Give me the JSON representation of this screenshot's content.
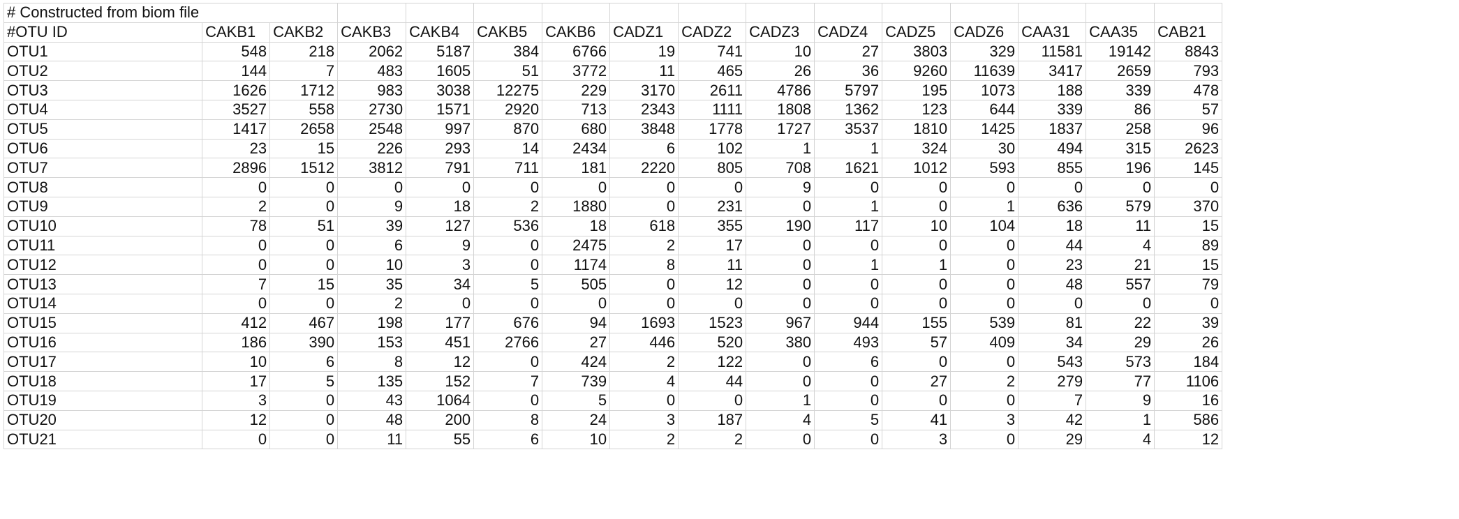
{
  "comment_row": "# Constructed from biom file",
  "columns": [
    "#OTU ID",
    "CAKB1",
    "CAKB2",
    "CAKB3",
    "CAKB4",
    "CAKB5",
    "CAKB6",
    "CADZ1",
    "CADZ2",
    "CADZ3",
    "CADZ4",
    "CADZ5",
    "CADZ6",
    "CAA31",
    "CAA35",
    "CAB21"
  ],
  "rows": [
    {
      "id": "OTU1",
      "values": [
        "548",
        "218",
        "2062",
        "5187",
        "384",
        "6766",
        "19",
        "741",
        "10",
        "27",
        "3803",
        "329",
        "11581",
        "19142",
        "8843"
      ]
    },
    {
      "id": "OTU2",
      "values": [
        "144",
        "7",
        "483",
        "1605",
        "51",
        "3772",
        "11",
        "465",
        "26",
        "36",
        "9260",
        "11639",
        "3417",
        "2659",
        "793"
      ]
    },
    {
      "id": "OTU3",
      "values": [
        "1626",
        "1712",
        "983",
        "3038",
        "12275",
        "229",
        "3170",
        "2611",
        "4786",
        "5797",
        "195",
        "1073",
        "188",
        "339",
        "478"
      ]
    },
    {
      "id": "OTU4",
      "values": [
        "3527",
        "558",
        "2730",
        "1571",
        "2920",
        "713",
        "2343",
        "1111",
        "1808",
        "1362",
        "123",
        "644",
        "339",
        "86",
        "57"
      ]
    },
    {
      "id": "OTU5",
      "values": [
        "1417",
        "2658",
        "2548",
        "997",
        "870",
        "680",
        "3848",
        "1778",
        "1727",
        "3537",
        "1810",
        "1425",
        "1837",
        "258",
        "96"
      ]
    },
    {
      "id": "OTU6",
      "values": [
        "23",
        "15",
        "226",
        "293",
        "14",
        "2434",
        "6",
        "102",
        "1",
        "1",
        "324",
        "30",
        "494",
        "315",
        "2623"
      ]
    },
    {
      "id": "OTU7",
      "values": [
        "2896",
        "1512",
        "3812",
        "791",
        "711",
        "181",
        "2220",
        "805",
        "708",
        "1621",
        "1012",
        "593",
        "855",
        "196",
        "145"
      ]
    },
    {
      "id": "OTU8",
      "values": [
        "0",
        "0",
        "0",
        "0",
        "0",
        "0",
        "0",
        "0",
        "9",
        "0",
        "0",
        "0",
        "0",
        "0",
        "0"
      ]
    },
    {
      "id": "OTU9",
      "values": [
        "2",
        "0",
        "9",
        "18",
        "2",
        "1880",
        "0",
        "231",
        "0",
        "1",
        "0",
        "1",
        "636",
        "579",
        "370"
      ]
    },
    {
      "id": "OTU10",
      "values": [
        "78",
        "51",
        "39",
        "127",
        "536",
        "18",
        "618",
        "355",
        "190",
        "117",
        "10",
        "104",
        "18",
        "11",
        "15"
      ]
    },
    {
      "id": "OTU11",
      "values": [
        "0",
        "0",
        "6",
        "9",
        "0",
        "2475",
        "2",
        "17",
        "0",
        "0",
        "0",
        "0",
        "44",
        "4",
        "89"
      ]
    },
    {
      "id": "OTU12",
      "values": [
        "0",
        "0",
        "10",
        "3",
        "0",
        "1174",
        "8",
        "11",
        "0",
        "1",
        "1",
        "0",
        "23",
        "21",
        "15"
      ]
    },
    {
      "id": "OTU13",
      "values": [
        "7",
        "15",
        "35",
        "34",
        "5",
        "505",
        "0",
        "12",
        "0",
        "0",
        "0",
        "0",
        "48",
        "557",
        "79"
      ]
    },
    {
      "id": "OTU14",
      "values": [
        "0",
        "0",
        "2",
        "0",
        "0",
        "0",
        "0",
        "0",
        "0",
        "0",
        "0",
        "0",
        "0",
        "0",
        "0"
      ]
    },
    {
      "id": "OTU15",
      "values": [
        "412",
        "467",
        "198",
        "177",
        "676",
        "94",
        "1693",
        "1523",
        "967",
        "944",
        "155",
        "539",
        "81",
        "22",
        "39"
      ]
    },
    {
      "id": "OTU16",
      "values": [
        "186",
        "390",
        "153",
        "451",
        "2766",
        "27",
        "446",
        "520",
        "380",
        "493",
        "57",
        "409",
        "34",
        "29",
        "26"
      ]
    },
    {
      "id": "OTU17",
      "values": [
        "10",
        "6",
        "8",
        "12",
        "0",
        "424",
        "2",
        "122",
        "0",
        "6",
        "0",
        "0",
        "543",
        "573",
        "184"
      ]
    },
    {
      "id": "OTU18",
      "values": [
        "17",
        "5",
        "135",
        "152",
        "7",
        "739",
        "4",
        "44",
        "0",
        "0",
        "27",
        "2",
        "279",
        "77",
        "1106"
      ]
    },
    {
      "id": "OTU19",
      "values": [
        "3",
        "0",
        "43",
        "1064",
        "0",
        "5",
        "0",
        "0",
        "1",
        "0",
        "0",
        "0",
        "7",
        "9",
        "16"
      ]
    },
    {
      "id": "OTU20",
      "values": [
        "12",
        "0",
        "48",
        "200",
        "8",
        "24",
        "3",
        "187",
        "4",
        "5",
        "41",
        "3",
        "42",
        "1",
        "586"
      ]
    },
    {
      "id": "OTU21",
      "values": [
        "0",
        "0",
        "11",
        "55",
        "6",
        "10",
        "2",
        "2",
        "0",
        "0",
        "3",
        "0",
        "29",
        "4",
        "12"
      ]
    }
  ]
}
